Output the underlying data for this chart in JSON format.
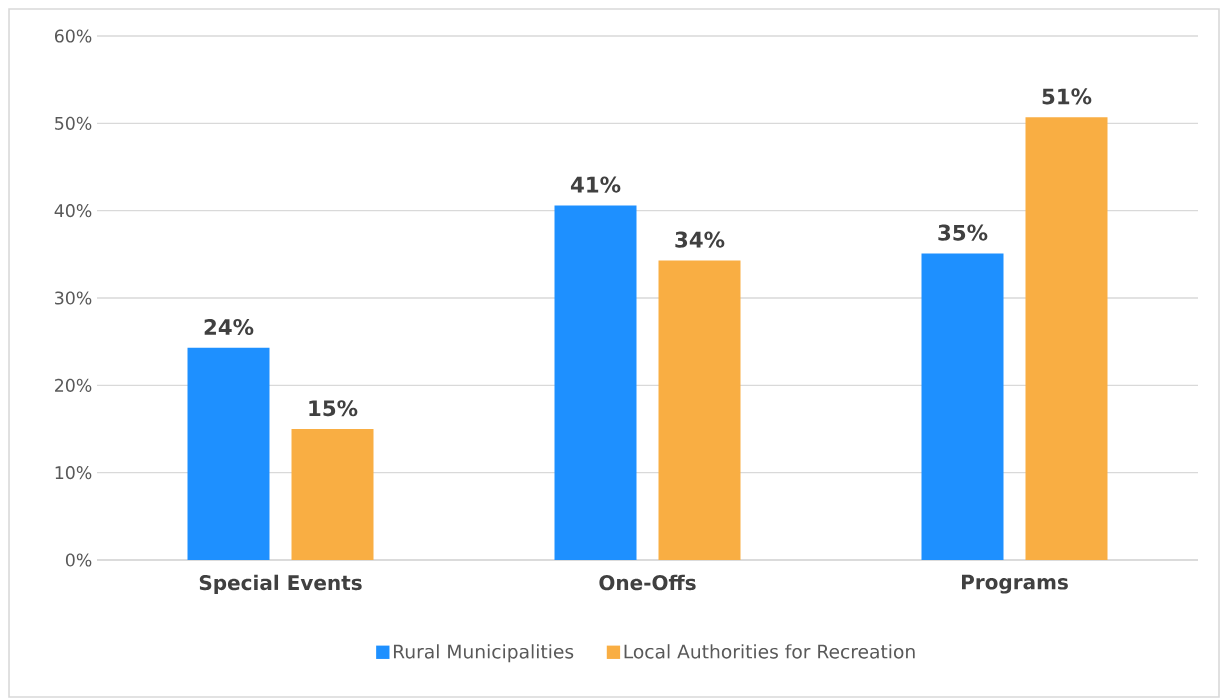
{
  "chart_data": {
    "type": "bar",
    "categories": [
      "Special Events",
      "One-Offs",
      "Programs"
    ],
    "series": [
      {
        "name": "Rural Municipalities",
        "color": "#1e90ff",
        "values": [
          24.3,
          40.6,
          35.1
        ],
        "value_labels": [
          "24%",
          "41%",
          "35%"
        ]
      },
      {
        "name": "Local Authorities for Recreation",
        "color": "#f9ae43",
        "values": [
          15.0,
          34.3,
          50.7
        ],
        "value_labels": [
          "15%",
          "34%",
          "51%"
        ]
      }
    ],
    "ylim": [
      0,
      60
    ],
    "yticks": [
      {
        "value": 0,
        "label": "0%"
      },
      {
        "value": 10,
        "label": "10%"
      },
      {
        "value": 20,
        "label": "20%"
      },
      {
        "value": 30,
        "label": "30%"
      },
      {
        "value": 40,
        "label": "40%"
      },
      {
        "value": 50,
        "label": "50%"
      },
      {
        "value": 60,
        "label": "60%"
      }
    ],
    "grid": "y",
    "legend": "bottom"
  }
}
